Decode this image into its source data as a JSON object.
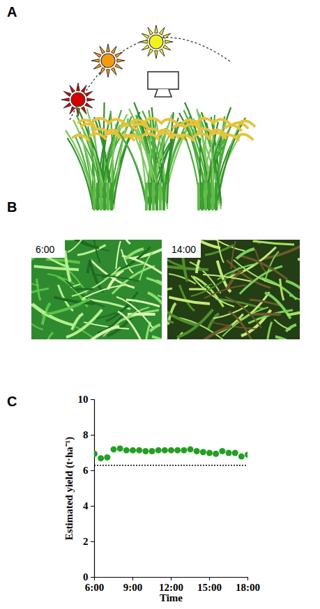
{
  "panel_labels": [
    "A",
    "B",
    "C"
  ],
  "photo_labels": [
    "6:00",
    "14:00"
  ],
  "chart_data": {
    "type": "scatter",
    "x": [
      6,
      6.5,
      7,
      7.5,
      8,
      8.5,
      9,
      9.5,
      10,
      10.5,
      11,
      11.5,
      12,
      12.5,
      13,
      13.5,
      14,
      14.5,
      15,
      15.5,
      16,
      16.5,
      17,
      17.5,
      18
    ],
    "values": [
      6.95,
      6.7,
      6.75,
      7.2,
      7.25,
      7.15,
      7.15,
      7.15,
      7.1,
      7.1,
      7.15,
      7.15,
      7.15,
      7.15,
      7.15,
      7.2,
      7.1,
      7.05,
      7.0,
      6.95,
      7.1,
      7.0,
      7.0,
      6.8,
      6.9
    ],
    "color": "#22a022",
    "marker": "circle",
    "x_label": "Time",
    "y_label": "Estimated yield (t·ha⁻¹)",
    "xlim": [
      6,
      18
    ],
    "xticks": [
      {
        "value": 6,
        "label": "6:00"
      },
      {
        "value": 9,
        "label": "9:00"
      },
      {
        "value": 12,
        "label": "12:00"
      },
      {
        "value": 15,
        "label": "15:00"
      },
      {
        "value": 18,
        "label": "18:00"
      }
    ],
    "ylim": [
      0,
      10
    ],
    "yticks": [
      0,
      2,
      4,
      6,
      8,
      10
    ],
    "reference_lines": [
      {
        "y": 6.3,
        "line_style": "dotted",
        "color": "#000000"
      }
    ],
    "grid": false
  }
}
